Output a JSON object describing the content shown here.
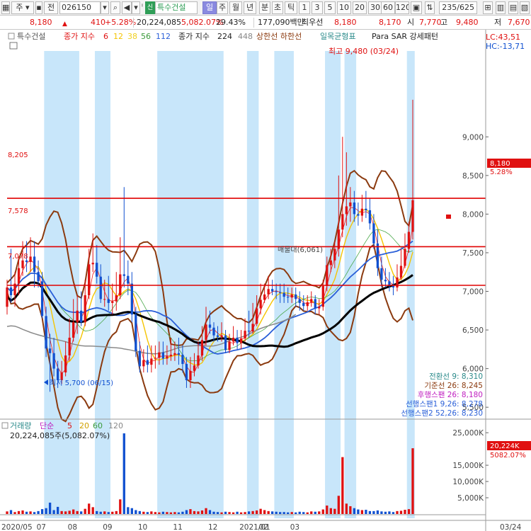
{
  "toolbar": {
    "market_label": "주",
    "jeon_label": "전",
    "code": "026150",
    "sin_badge": "신",
    "stock_name": "특수건설",
    "periods": [
      "일",
      "주",
      "월",
      "년",
      "분",
      "초",
      "틱"
    ],
    "active_period": "일",
    "intervals": [
      "1",
      "3",
      "5",
      "10",
      "20",
      "30",
      "60",
      "120"
    ],
    "page_count": "235/625"
  },
  "quote": {
    "price": "8,180",
    "change": "410",
    "change_pct": "+5.28%",
    "volume": "20,224,085",
    "volume_ratio": "5,082.07%",
    "turnover": "29.43%",
    "amount": "177,090백만",
    "best_label": "최우선",
    "best_ask": "8,180",
    "best_bid": "8,170",
    "open_label": "시",
    "open": "7,770",
    "high_label": "고",
    "high": "9,480",
    "low_label": "저",
    "low": "7,670"
  },
  "colors": {
    "up": "#e01010",
    "down": "#1050d0",
    "highlight": "#c8e6fa",
    "ma5": "#f01818",
    "ma12": "#f5c400",
    "ma38": "#ffe23a",
    "ma56": "#4aa84a",
    "ma112": "#2a5fd8",
    "ma224": "#000000",
    "ma448": "#8a8a8a",
    "envelope": "#8b3a0f",
    "hline": "#e00000"
  },
  "legend": {
    "stock": "특수건설",
    "ma_label": "종가 지수",
    "ma_periods": [
      "6",
      "12",
      "38",
      "56",
      "112"
    ],
    "ma2_label": "종가 지수",
    "ma2_periods": [
      "224",
      "448"
    ],
    "envelope_label": "상한선 하한선",
    "ichimoku_label": "일목균형표",
    "sar_label": "Para SAR 강세패턴",
    "lc": "LC:43,51",
    "hc": "HC:-13,71"
  },
  "annotations": {
    "high_note": "최고 9,480 (03/24)",
    "low_note": "최저 5,700 (06/15)",
    "level_1": "8,205",
    "level_2": "7,578",
    "level_3": "7,078",
    "box_label": "매물대(6,061)",
    "price_tag": "8,180",
    "price_tag_pct": "5.28%",
    "vol_tag": "20,224K",
    "vol_tag_pct": "5082.07%"
  },
  "ichimoku_info": [
    "전환선 9: 8,310",
    "기준선 26: 8,245",
    "후행스팬 26: 8,180",
    "선행스팬1 9,26: 8,278",
    "선행스팬2 52,26: 8,230"
  ],
  "volume_panel": {
    "legend_label": "거래량",
    "legend_type": "단순",
    "legend_periods": [
      "5",
      "20",
      "60",
      "120"
    ],
    "value_text": "20,224,085주(5,082.07%)"
  },
  "chart_data": {
    "type": "candlestick",
    "price_axis": {
      "ticks": [
        "9,000",
        "8,500",
        "8,000",
        "7,500",
        "7,000",
        "6,500",
        "6,000",
        "5,500"
      ],
      "tick_values": [
        9000,
        8500,
        8000,
        7500,
        7000,
        6500,
        6000,
        5500
      ],
      "range": [
        5300,
        9800
      ]
    },
    "volume_axis": {
      "ticks": [
        "25,000K",
        "15,000K",
        "10,000K",
        "5,000K"
      ],
      "tick_values": [
        25000,
        15000,
        10000,
        5000
      ],
      "range": [
        0,
        27000
      ]
    },
    "x_labels": [
      "2020/05",
      "07",
      "08",
      "09",
      "10",
      "11",
      "12",
      "2021/01",
      "02",
      "03",
      "03/24"
    ],
    "ohlc": {
      "open": [
        6800,
        7050,
        6950,
        7100,
        7300,
        7400,
        7380,
        7450,
        7250,
        7130,
        6680,
        6260,
        6200,
        6000,
        5850,
        5950,
        6170,
        6400,
        6600,
        6750,
        6600,
        6950,
        7350,
        7370,
        7190,
        6900,
        6900,
        6850,
        6870,
        6950,
        7220,
        7200,
        7100,
        6700,
        6230,
        6030,
        6110,
        6050,
        6130,
        6140,
        6210,
        6130,
        6160,
        6180,
        6200,
        6180,
        6060,
        5850,
        5970,
        6040,
        6170,
        6370,
        6570,
        6530,
        6430,
        6410,
        6430,
        6240,
        6350,
        6400,
        6330,
        6390,
        6490,
        6480,
        6580,
        6780,
        6890,
        6960,
        7030,
        7000,
        6990,
        6980,
        6930,
        6920,
        6960,
        6900,
        6850,
        6810,
        6860,
        6900,
        6780,
        6800,
        7070,
        7340,
        7400,
        7550,
        7800,
        8000,
        8100,
        8150,
        8000,
        7980,
        8070,
        8050,
        7880,
        7620,
        7300,
        7150,
        7130,
        7080,
        7050,
        7180,
        7330,
        7550,
        7770
      ],
      "high": [
        7150,
        7550,
        7250,
        7450,
        7650,
        7650,
        7700,
        7650,
        7400,
        7250,
        6800,
        6450,
        6400,
        6100,
        6100,
        6350,
        6650,
        6900,
        6950,
        7000,
        7150,
        7550,
        7750,
        7600,
        7350,
        7150,
        7200,
        7100,
        7250,
        7700,
        8350,
        7400,
        7250,
        6800,
        6350,
        6250,
        6300,
        6300,
        6300,
        6350,
        6350,
        6300,
        6400,
        6350,
        6400,
        6300,
        6150,
        6150,
        6200,
        6350,
        6550,
        6800,
        6750,
        6600,
        6550,
        6600,
        6500,
        6450,
        6550,
        6500,
        6500,
        6650,
        6750,
        6850,
        6950,
        7100,
        7100,
        7200,
        7150,
        7100,
        7100,
        7100,
        7050,
        7050,
        7050,
        7000,
        6950,
        6950,
        7000,
        6950,
        6900,
        7150,
        7450,
        7550,
        7650,
        8500,
        9000,
        8800,
        8350,
        8300,
        8150,
        8250,
        8300,
        8200,
        8000,
        7800,
        7450,
        7300,
        7250,
        7200,
        7350,
        7550,
        7750,
        7900,
        9480
      ],
      "low": [
        6700,
        6850,
        6800,
        6950,
        7200,
        7250,
        7250,
        7050,
        7050,
        6650,
        6150,
        5700,
        5900,
        5750,
        5800,
        5900,
        6100,
        6350,
        6450,
        6550,
        6550,
        6900,
        7250,
        7100,
        6850,
        6800,
        6750,
        6700,
        6750,
        6900,
        7050,
        6950,
        6600,
        6150,
        5950,
        5950,
        5950,
        5950,
        6000,
        6050,
        6050,
        6050,
        6100,
        6100,
        6050,
        5950,
        5750,
        5750,
        5900,
        6000,
        6100,
        6300,
        6450,
        6350,
        6350,
        6350,
        6200,
        6200,
        6300,
        6250,
        6250,
        6350,
        6400,
        6450,
        6550,
        6700,
        6850,
        6900,
        6950,
        6900,
        6850,
        6850,
        6850,
        6850,
        6800,
        6750,
        6750,
        6750,
        6800,
        6700,
        6700,
        6750,
        7000,
        7250,
        7300,
        7450,
        7700,
        7850,
        7900,
        7900,
        7850,
        7900,
        7950,
        7800,
        7550,
        7200,
        7050,
        7050,
        7000,
        6950,
        7000,
        7150,
        7300,
        7500,
        7670
      ],
      "close": [
        7050,
        6950,
        7100,
        7300,
        7400,
        7380,
        7450,
        7250,
        7130,
        6680,
        6260,
        6200,
        6000,
        5850,
        5950,
        6170,
        6400,
        6600,
        6750,
        6600,
        6950,
        7350,
        7370,
        7190,
        6900,
        6900,
        6850,
        6870,
        6950,
        7220,
        7200,
        7100,
        6700,
        6230,
        6030,
        6110,
        6050,
        6130,
        6140,
        6210,
        6130,
        6160,
        6180,
        6200,
        6180,
        6060,
        5850,
        5970,
        6040,
        6170,
        6370,
        6570,
        6530,
        6430,
        6410,
        6430,
        6240,
        6350,
        6400,
        6330,
        6390,
        6490,
        6480,
        6580,
        6780,
        6890,
        6960,
        7030,
        7000,
        6990,
        6980,
        6930,
        6920,
        6960,
        6900,
        6850,
        6810,
        6860,
        6900,
        6780,
        6800,
        7070,
        7340,
        7400,
        7550,
        7800,
        8000,
        8100,
        8150,
        8000,
        7980,
        8070,
        8050,
        7880,
        7620,
        7300,
        7150,
        7130,
        7080,
        7050,
        7180,
        7330,
        7550,
        7770,
        8180
      ]
    },
    "volume_k": [
      800,
      1200,
      600,
      900,
      1100,
      700,
      800,
      600,
      900,
      1500,
      1800,
      3500,
      1200,
      2200,
      900,
      800,
      1000,
      1400,
      900,
      800,
      1600,
      3200,
      2100,
      900,
      700,
      800,
      600,
      700,
      900,
      4500,
      24800,
      2100,
      1800,
      1200,
      900,
      700,
      600,
      800,
      600,
      500,
      700,
      600,
      500,
      600,
      500,
      700,
      1200,
      1500,
      900,
      800,
      1100,
      1800,
      1200,
      700,
      600,
      500,
      700,
      600,
      500,
      700,
      500,
      600,
      800,
      900,
      1100,
      1600,
      1200,
      900,
      800,
      700,
      600,
      600,
      500,
      600,
      500,
      700,
      600,
      500,
      800,
      700,
      800,
      1400,
      2600,
      1800,
      1600,
      5600,
      17500,
      3200,
      2400,
      1800,
      1400,
      1200,
      1300,
      900,
      900,
      1100,
      800,
      700,
      800,
      600,
      900,
      1000,
      1300,
      1500,
      20224
    ],
    "highlight_ranges": [
      [
        10,
        18
      ],
      [
        23,
        26
      ],
      [
        39,
        55
      ],
      [
        62,
        64
      ],
      [
        69,
        73
      ],
      [
        82,
        85
      ],
      [
        87,
        89
      ],
      [
        103,
        104
      ]
    ],
    "horizontal_levels": [
      8205,
      7578,
      7078
    ],
    "latest_close": 8180,
    "latest_volume_k": 20224
  }
}
